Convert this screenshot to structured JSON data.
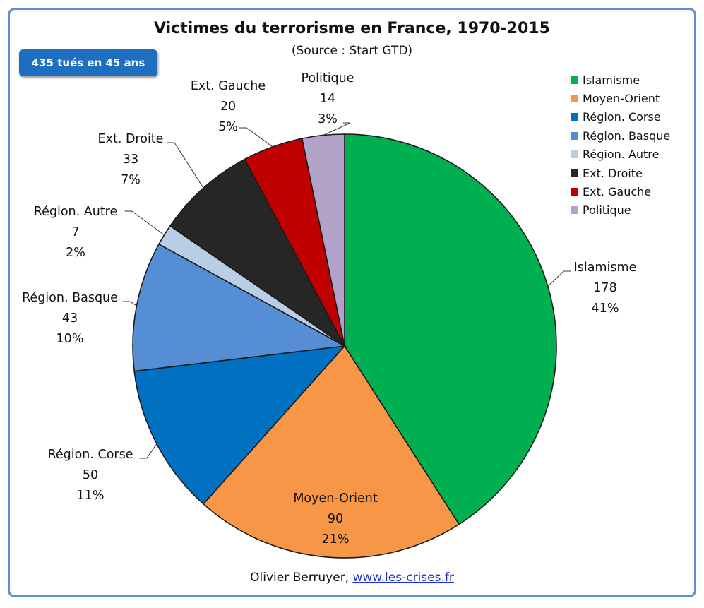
{
  "title": "Victimes du terrorisme en France, 1970-2015",
  "subtitle": "(Source : Start GTD)",
  "badge": "435 tués en 45 ans",
  "credit": {
    "author": "Olivier Berruyer,",
    "link": "www.les-crises.fr"
  },
  "colors": {
    "frame": "#5b8fd0",
    "badge": "#1f6fc0",
    "link": "#1a2fd8"
  },
  "chart_data": {
    "type": "pie",
    "title": "Victimes du terrorisme en France, 1970-2015",
    "subtitle": "(Source : Start GTD)",
    "total": 435,
    "legend_position": "right",
    "slices": [
      {
        "label": "Islamisme",
        "value": 178,
        "percent": "41%",
        "color": "#00b050"
      },
      {
        "label": "Moyen-Orient",
        "value": 90,
        "percent": "21%",
        "color": "#f79646"
      },
      {
        "label": "Région. Corse",
        "value": 50,
        "percent": "11%",
        "color": "#0070c0"
      },
      {
        "label": "Région. Basque",
        "value": 43,
        "percent": "10%",
        "color": "#558ed5"
      },
      {
        "label": "Région. Autre",
        "value": 7,
        "percent": "2%",
        "color": "#b9cde5"
      },
      {
        "label": "Ext. Droite",
        "value": 33,
        "percent": "7%",
        "color": "#262626"
      },
      {
        "label": "Ext. Gauche",
        "value": 20,
        "percent": "5%",
        "color": "#c00000"
      },
      {
        "label": "Politique",
        "value": 14,
        "percent": "3%",
        "color": "#b3a2c7"
      }
    ]
  }
}
